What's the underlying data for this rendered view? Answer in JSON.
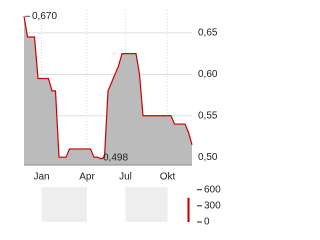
{
  "chart_data": [
    {
      "type": "area",
      "categories": [
        null,
        null,
        null,
        null,
        null,
        "Jan",
        null,
        null,
        null,
        null,
        null,
        null,
        null,
        null,
        null,
        null,
        null,
        null,
        "Apr",
        null,
        null,
        null,
        null,
        null,
        null,
        null,
        null,
        null,
        null,
        "Jul",
        null,
        null,
        null,
        null,
        null,
        null,
        null,
        null,
        null,
        null,
        null,
        "Okt",
        null,
        null,
        null,
        null,
        null,
        null,
        null
      ],
      "values": [
        0.67,
        0.645,
        0.645,
        0.645,
        0.595,
        0.595,
        0.595,
        0.595,
        0.58,
        0.58,
        0.5,
        0.5,
        0.5,
        0.51,
        0.51,
        0.51,
        0.51,
        0.51,
        0.51,
        0.51,
        0.5,
        0.5,
        0.498,
        0.5,
        0.58,
        0.59,
        0.6,
        0.61,
        0.625,
        0.625,
        0.625,
        0.625,
        0.625,
        0.6,
        0.55,
        0.55,
        0.55,
        0.55,
        0.55,
        0.55,
        0.55,
        0.55,
        0.55,
        0.54,
        0.54,
        0.54,
        0.54,
        0.53,
        0.515
      ],
      "color": "#cc0000",
      "fill": "#bbbbbb",
      "max_label": "0,670",
      "min_label": "0,498",
      "ylim": [
        0.4906,
        0.6776
      ],
      "yticks": [
        {
          "value": 0.5,
          "label": "0,50"
        },
        {
          "value": 0.55,
          "label": "0,55"
        },
        {
          "value": 0.6,
          "label": "0,60"
        },
        {
          "value": 0.65,
          "label": "0,65"
        }
      ],
      "grid": true
    },
    {
      "type": "bar",
      "values": [
        0,
        0,
        0,
        0,
        0,
        0,
        0,
        0,
        0,
        0,
        0,
        0,
        0,
        0,
        0,
        0,
        0,
        0,
        0,
        0,
        0,
        0,
        0,
        0,
        0,
        0,
        0,
        0,
        0,
        0,
        0,
        0,
        0,
        0,
        0,
        0,
        0,
        0,
        0,
        0,
        0,
        0,
        0,
        0,
        0,
        0,
        0,
        450,
        0
      ],
      "color": "#cc0000",
      "ylim": [
        0,
        650
      ],
      "yticks": [
        0,
        300,
        600
      ]
    }
  ]
}
